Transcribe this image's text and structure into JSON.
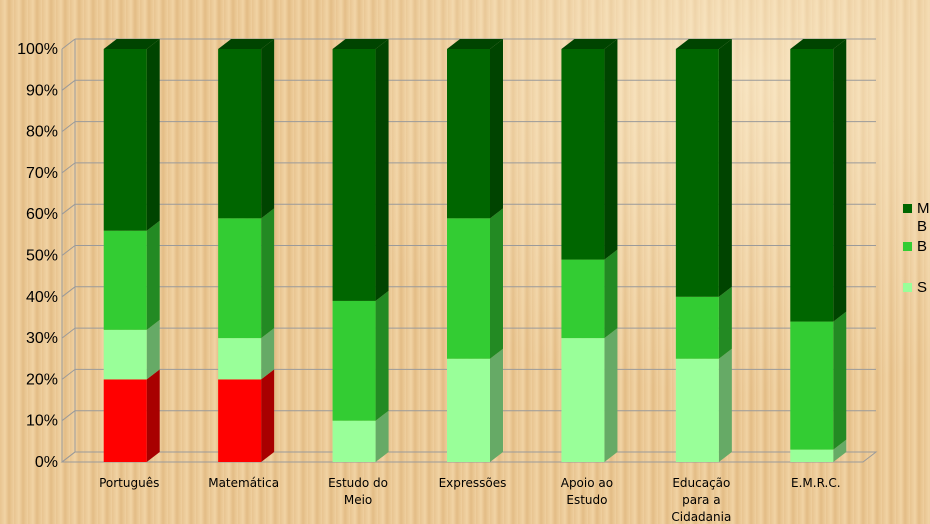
{
  "chart_data": {
    "type": "bar",
    "stacked": true,
    "percent": true,
    "three_d": true,
    "title": "",
    "xlabel": "",
    "ylabel": "",
    "ylim": [
      0,
      100
    ],
    "y_ticks": [
      "0%",
      "10%",
      "20%",
      "30%",
      "40%",
      "50%",
      "60%",
      "70%",
      "80%",
      "90%",
      "100%"
    ],
    "grid": true,
    "legend_position": "right",
    "categories": [
      [
        "Português"
      ],
      [
        "Matemática"
      ],
      [
        "Estudo do",
        "Meio"
      ],
      [
        "Expressões"
      ],
      [
        "Apoio ao",
        "Estudo"
      ],
      [
        "Educação",
        "para a",
        "Cidadania"
      ],
      [
        "E.M.R.C."
      ]
    ],
    "series": [
      {
        "legend": false,
        "color": "#ff0000",
        "side": "#a80000",
        "values": [
          20,
          20,
          0,
          0,
          0,
          0,
          0
        ]
      },
      {
        "name": "S",
        "color": "#99ff99",
        "side": "#66aa66",
        "values": [
          12,
          10,
          10,
          25,
          30,
          25,
          3
        ]
      },
      {
        "name": "B",
        "color": "#33cc33",
        "side": "#238a23",
        "values": [
          24,
          29,
          29,
          34,
          19,
          15,
          31
        ]
      },
      {
        "name": "MB",
        "legend_lines": [
          "M",
          "B"
        ],
        "color": "#006600",
        "side": "#004400",
        "values": [
          44,
          41,
          61,
          41,
          51,
          60,
          66
        ]
      }
    ]
  }
}
